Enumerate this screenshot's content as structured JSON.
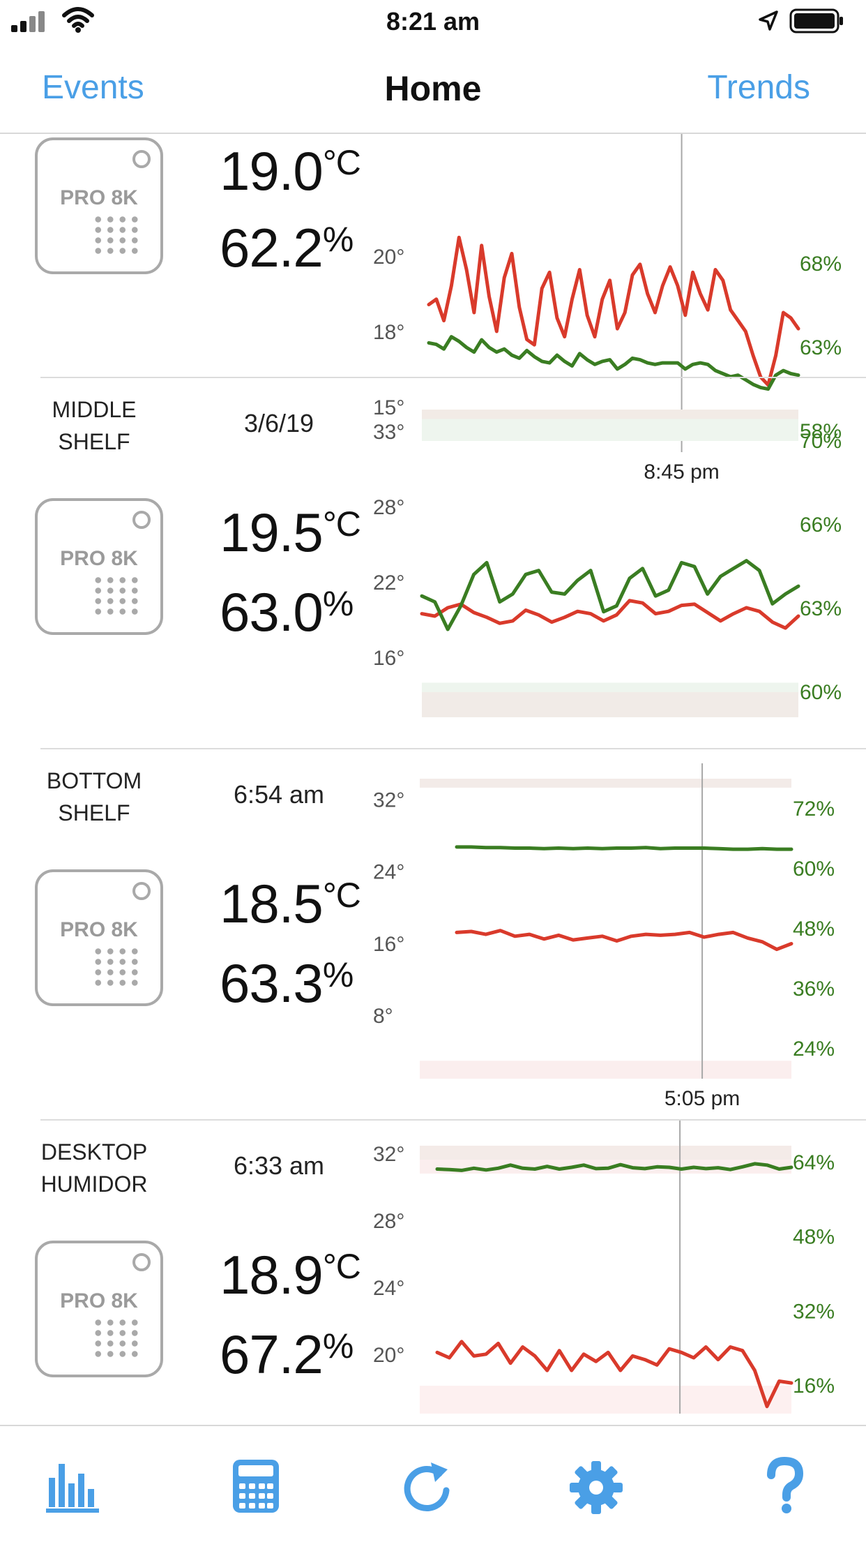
{
  "status_bar": {
    "time": "8:21 am"
  },
  "nav": {
    "left": "Events",
    "title": "Home",
    "right": "Trends"
  },
  "colors": {
    "accent": "#4a9fe6",
    "temperature": "#d93a2b",
    "humidity": "#3a7d22",
    "device_gray": "#a9a9a9"
  },
  "sensors": [
    {
      "name_line1": "",
      "name_line2": "",
      "time": "",
      "temperature": "19.0",
      "temperature_unit": "°C",
      "humidity": "62.2",
      "humidity_unit": "%",
      "device_label": "PRO 8K"
    },
    {
      "name_line1": "MIDDLE",
      "name_line2": "SHELF",
      "time": "3/6/19",
      "temperature": "19.5",
      "temperature_unit": "°C",
      "humidity": "63.0",
      "humidity_unit": "%",
      "device_label": "PRO 8K"
    },
    {
      "name_line1": "BOTTOM",
      "name_line2": "SHELF",
      "time": "6:54 am",
      "temperature": "18.5",
      "temperature_unit": "°C",
      "humidity": "63.3",
      "humidity_unit": "%",
      "device_label": "PRO 8K"
    },
    {
      "name_line1": "DESKTOP",
      "name_line2": "HUMIDOR",
      "time": "6:33 am",
      "temperature": "18.9",
      "temperature_unit": "°C",
      "humidity": "67.2",
      "humidity_unit": "%",
      "device_label": "PRO 8K"
    }
  ],
  "chart_data": [
    {
      "type": "line",
      "temp_ticks": [
        "20°",
        "18°",
        "15°"
      ],
      "humidity_ticks": [
        "68%",
        "63%",
        "58%"
      ],
      "temp_ylim": [
        14.4,
        22.2
      ],
      "humidity_ylim": [
        57.2,
        70.8
      ],
      "marker_label": "8:45 pm",
      "marker_x": 0.69,
      "series": [
        {
          "values": [
            19.9,
            20.1,
            19.3,
            20.6,
            22.4,
            21.2,
            19.6,
            22.1,
            20.2,
            18.9,
            20.9,
            21.8,
            19.8,
            18.6,
            18.4,
            20.5,
            21.1,
            19.4,
            18.7,
            20.1,
            21.2,
            19.5,
            18.7,
            20.1,
            20.8,
            19.0,
            19.6,
            21.0,
            21.4,
            20.3,
            19.6,
            20.6,
            21.3,
            20.6,
            19.5,
            21.1,
            20.3,
            19.7,
            21.2,
            20.8,
            19.7,
            19.3,
            18.9,
            18.0,
            17.2,
            16.9,
            18.0,
            19.6,
            19.4,
            19.0
          ]
        },
        {
          "values": [
            64.3,
            64.2,
            63.9,
            64.7,
            64.4,
            64.0,
            63.7,
            64.5,
            64.0,
            63.7,
            63.9,
            63.5,
            63.3,
            63.8,
            63.4,
            63.1,
            63.0,
            63.5,
            63.1,
            62.8,
            63.6,
            63.2,
            62.9,
            63.1,
            63.2,
            62.6,
            62.9,
            63.3,
            63.2,
            63.0,
            62.9,
            63.0,
            63.0,
            63.0,
            62.6,
            62.9,
            63.0,
            62.9,
            62.5,
            62.3,
            62.1,
            62.2,
            61.9,
            61.6,
            61.4,
            61.3,
            62.2,
            62.5,
            62.3,
            62.2
          ]
        }
      ]
    },
    {
      "type": "line",
      "temp_ticks": [
        "33°",
        "28°",
        "22°",
        "16°"
      ],
      "humidity_ticks": [
        "70%",
        "66%",
        "63%",
        "60%"
      ],
      "temp_ylim": [
        11.2,
        37.5
      ],
      "humidity_ylim": [
        57.0,
        73.0
      ],
      "marker_label": "",
      "marker_x": null,
      "series": [
        {
          "values": [
            20.4,
            20.2,
            20.9,
            21.2,
            20.5,
            20.1,
            19.6,
            19.8,
            20.7,
            20.3,
            19.7,
            20.1,
            20.6,
            20.4,
            19.8,
            20.3,
            21.5,
            21.3,
            20.4,
            20.6,
            21.1,
            21.2,
            20.5,
            19.8,
            20.4,
            20.9,
            20.6,
            19.7,
            19.2,
            20.2
          ]
        },
        {
          "values": [
            63.5,
            63.2,
            61.8,
            63.0,
            64.6,
            65.2,
            63.2,
            63.6,
            64.6,
            64.8,
            63.7,
            63.6,
            64.3,
            64.8,
            62.7,
            63.0,
            64.4,
            64.9,
            63.5,
            63.8,
            65.2,
            65.0,
            63.6,
            64.5,
            64.9,
            65.3,
            64.8,
            63.1,
            63.6,
            64.0
          ]
        }
      ]
    },
    {
      "type": "line",
      "temp_ticks": [
        "32°",
        "24°",
        "16°",
        "8°"
      ],
      "humidity_ticks": [
        "72%",
        "60%",
        "48%",
        "36%",
        "24%"
      ],
      "temp_ylim": [
        4.0,
        36.0
      ],
      "humidity_ylim": [
        21.0,
        75.0
      ],
      "marker_label": "5:05 pm",
      "marker_x": 0.76,
      "series": [
        {
          "values": [
            19.6,
            19.7,
            19.4,
            19.8,
            19.2,
            19.4,
            18.9,
            19.3,
            18.8,
            19.0,
            19.2,
            18.7,
            19.2,
            19.4,
            19.3,
            19.4,
            19.6,
            19.1,
            19.4,
            19.6,
            19.0,
            18.6,
            17.8,
            18.4
          ]
        },
        {
          "values": [
            62.7,
            62.7,
            62.6,
            62.6,
            62.5,
            62.5,
            62.4,
            62.5,
            62.4,
            62.5,
            62.4,
            62.5,
            62.5,
            62.6,
            62.4,
            62.5,
            62.5,
            62.5,
            62.4,
            62.3,
            62.3,
            62.4,
            62.3,
            62.3
          ]
        }
      ]
    },
    {
      "type": "line",
      "temp_ticks": [
        "32°",
        "28°",
        "24°",
        "20°"
      ],
      "humidity_ticks": [
        "64%",
        "48%",
        "32%",
        "16%"
      ],
      "temp_ylim": [
        16.8,
        32.3
      ],
      "humidity_ylim": [
        10.0,
        73.0
      ],
      "marker_label": "",
      "marker_x": 0.7,
      "series": [
        {
          "values": [
            20.2,
            19.9,
            20.8,
            20.0,
            20.1,
            20.7,
            19.6,
            20.5,
            20.0,
            19.2,
            20.3,
            19.2,
            20.1,
            19.7,
            20.2,
            19.2,
            20.0,
            19.8,
            19.5,
            20.4,
            20.2,
            19.9,
            20.5,
            19.8,
            20.5,
            20.3,
            19.2,
            17.2,
            18.6,
            18.5
          ]
        },
        {
          "values": [
            65.2,
            65.1,
            64.9,
            65.4,
            65.0,
            65.4,
            66.1,
            65.4,
            65.2,
            65.8,
            65.2,
            65.6,
            66.1,
            65.3,
            65.4,
            66.2,
            65.5,
            65.3,
            65.7,
            65.6,
            65.2,
            65.6,
            65.3,
            65.5,
            65.1,
            65.7,
            66.4,
            66.1,
            65.2,
            65.6
          ]
        }
      ]
    }
  ],
  "tabs": [
    {
      "name": "stats"
    },
    {
      "name": "calculator"
    },
    {
      "name": "refresh"
    },
    {
      "name": "settings"
    },
    {
      "name": "help"
    }
  ]
}
